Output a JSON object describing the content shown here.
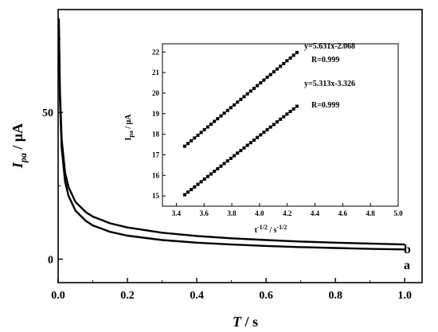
{
  "chart_data": [
    {
      "type": "line",
      "xlabel": "T / s",
      "ylabel": "I_pa / μA",
      "xlim": [
        0.0,
        1.05
      ],
      "ylim": [
        -8,
        85
      ],
      "xticks": [
        "0.0",
        "0.2",
        "0.4",
        "0.6",
        "0.8",
        "1.0"
      ],
      "yticks": [
        "0",
        "50"
      ],
      "grid": false,
      "series": [
        {
          "name": "a",
          "x": [
            0.002,
            0.005,
            0.01,
            0.02,
            0.03,
            0.05,
            0.08,
            0.1,
            0.15,
            0.2,
            0.3,
            0.4,
            0.5,
            0.6,
            0.7,
            0.8,
            0.9,
            1.0
          ],
          "y": [
            79,
            55,
            38,
            26.5,
            21.5,
            16.5,
            13.0,
            11.5,
            9.3,
            8.0,
            6.5,
            5.6,
            5.0,
            4.5,
            4.1,
            3.8,
            3.5,
            3.3
          ]
        },
        {
          "name": "b",
          "x": [
            0.002,
            0.005,
            0.01,
            0.02,
            0.03,
            0.05,
            0.08,
            0.1,
            0.15,
            0.2,
            0.3,
            0.4,
            0.5,
            0.6,
            0.7,
            0.8,
            0.9,
            1.0
          ],
          "y": [
            82,
            58,
            41,
            29.5,
            24.5,
            19.5,
            16.0,
            14.5,
            12.2,
            10.8,
            9.0,
            7.9,
            7.1,
            6.5,
            6.0,
            5.6,
            5.3,
            5.0
          ]
        }
      ],
      "curve_labels": [
        "a",
        "b"
      ]
    },
    {
      "type": "scatter",
      "xlabel": "t^-1/2 / s^-1/2",
      "ylabel": "I_pa / μA",
      "xlim": [
        3.3,
        5.0
      ],
      "ylim": [
        14.5,
        22.4
      ],
      "xticks": [
        "3.4",
        "3.6",
        "3.8",
        "4.0",
        "4.2",
        "4.4",
        "4.6",
        "4.8",
        "5.0"
      ],
      "yticks": [
        "15",
        "16",
        "17",
        "18",
        "19",
        "20",
        "21",
        "22"
      ],
      "grid": false,
      "series": [
        {
          "x_start": 3.46,
          "x_end": 4.27,
          "points": 35,
          "slope": 5.631,
          "intercept": -2.068
        },
        {
          "x_start": 3.46,
          "x_end": 4.27,
          "points": 35,
          "slope": 5.313,
          "intercept": -3.326
        }
      ],
      "annotations": [
        {
          "equation": "y=5.631x-2.068",
          "r": "R=0.999"
        },
        {
          "equation": "y=5.313x-3.326",
          "r": "R=0.999"
        }
      ]
    }
  ]
}
